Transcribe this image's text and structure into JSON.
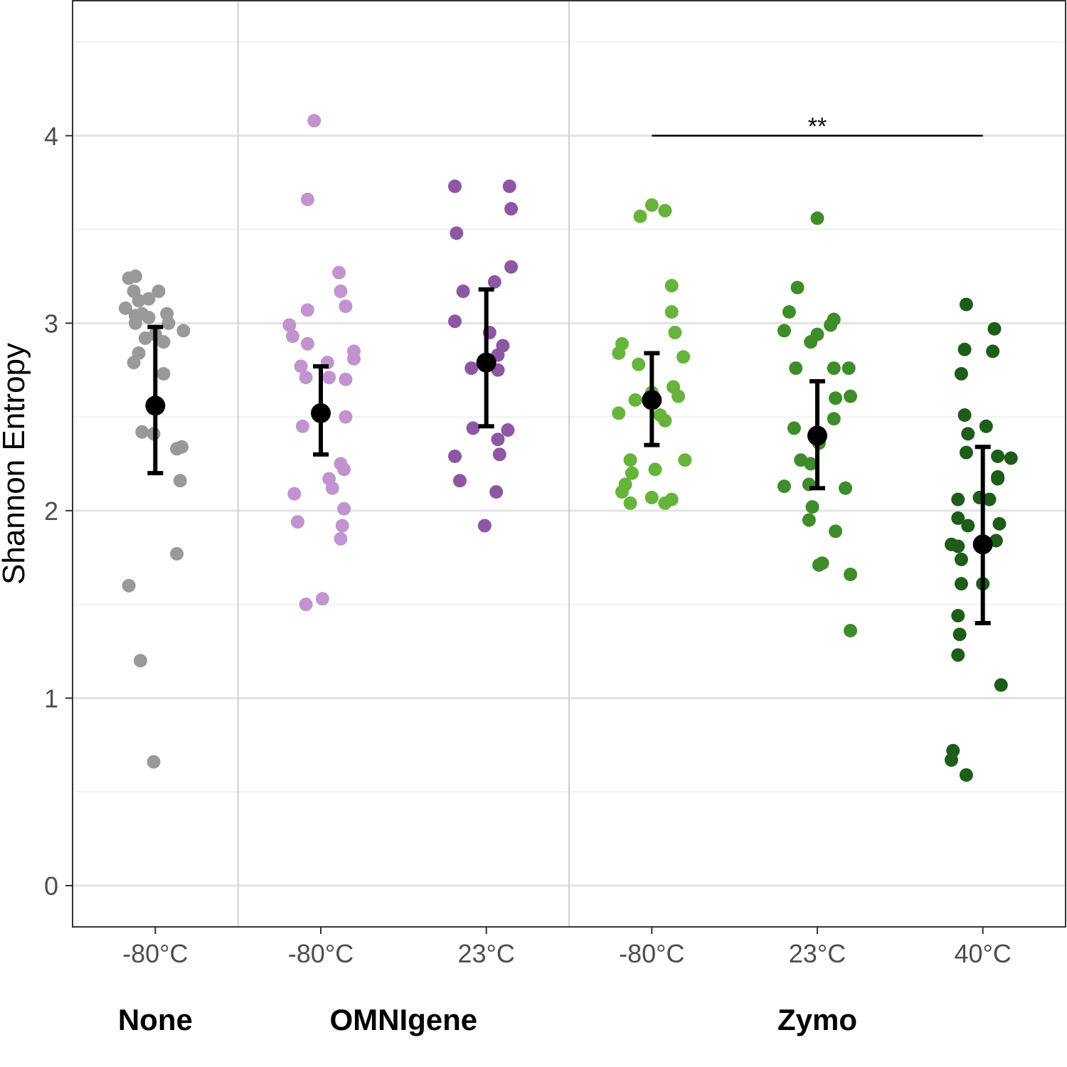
{
  "chart_data": {
    "type": "scatter",
    "ylabel": "Shannon Entropy",
    "ylim": [
      -0.22,
      4.72
    ],
    "y_ticks": [
      0,
      1,
      2,
      3,
      4
    ],
    "grid": true,
    "categories": [
      {
        "tick": "-80°C",
        "group": "None",
        "color": "#999999"
      },
      {
        "tick": "-80°C",
        "group": "OMNIgene",
        "color": "#c194cf"
      },
      {
        "tick": "23°C",
        "group": "OMNIgene",
        "color": "#8d57a3"
      },
      {
        "tick": "-80°C",
        "group": "Zymo",
        "color": "#67b33b"
      },
      {
        "tick": "23°C",
        "group": "Zymo",
        "color": "#3f8c2a"
      },
      {
        "tick": "40°C",
        "group": "Zymo",
        "color": "#1e5c19"
      }
    ],
    "groups": [
      {
        "label": "None",
        "start": 0,
        "end": 0
      },
      {
        "label": "OMNIgene",
        "start": 1,
        "end": 2
      },
      {
        "label": "Zymo",
        "start": 3,
        "end": 5
      }
    ],
    "series": [
      {
        "points": [
          [
            -0.16,
            3.24
          ],
          [
            -0.12,
            3.25
          ],
          [
            -0.13,
            3.17
          ],
          [
            -0.1,
            3.12
          ],
          [
            -0.04,
            3.13
          ],
          [
            0.02,
            3.17
          ],
          [
            -0.18,
            3.08
          ],
          [
            -0.12,
            3.04
          ],
          [
            -0.08,
            3.05
          ],
          [
            -0.04,
            3.03
          ],
          [
            0.07,
            3.05
          ],
          [
            0.08,
            3.0
          ],
          [
            -0.12,
            3.0
          ],
          [
            -0.06,
            2.92
          ],
          [
            0.0,
            2.94
          ],
          [
            0.05,
            2.9
          ],
          [
            0.17,
            2.96
          ],
          [
            -0.1,
            2.84
          ],
          [
            -0.13,
            2.79
          ],
          [
            0.05,
            2.73
          ],
          [
            -0.08,
            2.42
          ],
          [
            -0.01,
            2.41
          ],
          [
            0.13,
            2.33
          ],
          [
            0.16,
            2.34
          ],
          [
            0.15,
            2.16
          ],
          [
            0.13,
            1.77
          ],
          [
            -0.16,
            1.6
          ],
          [
            -0.09,
            1.2
          ],
          [
            -0.01,
            0.66
          ]
        ],
        "mean": 2.56,
        "lo": 2.2,
        "hi": 2.98
      },
      {
        "points": [
          [
            -0.04,
            4.08
          ],
          [
            -0.08,
            3.66
          ],
          [
            0.11,
            3.27
          ],
          [
            0.12,
            3.17
          ],
          [
            0.15,
            3.09
          ],
          [
            -0.08,
            3.07
          ],
          [
            -0.19,
            2.99
          ],
          [
            -0.17,
            2.93
          ],
          [
            -0.08,
            2.89
          ],
          [
            0.2,
            2.85
          ],
          [
            0.2,
            2.81
          ],
          [
            0.04,
            2.79
          ],
          [
            -0.12,
            2.77
          ],
          [
            0.05,
            2.71
          ],
          [
            -0.09,
            2.71
          ],
          [
            0.15,
            2.7
          ],
          [
            0.15,
            2.5
          ],
          [
            -0.11,
            2.45
          ],
          [
            0.12,
            2.25
          ],
          [
            0.14,
            2.22
          ],
          [
            0.05,
            2.17
          ],
          [
            0.07,
            2.12
          ],
          [
            -0.16,
            2.09
          ],
          [
            0.14,
            2.01
          ],
          [
            -0.14,
            1.94
          ],
          [
            0.13,
            1.92
          ],
          [
            0.12,
            1.85
          ],
          [
            0.01,
            1.53
          ],
          [
            -0.09,
            1.5
          ]
        ],
        "mean": 2.52,
        "lo": 2.3,
        "hi": 2.77
      },
      {
        "points": [
          [
            -0.19,
            3.73
          ],
          [
            0.14,
            3.73
          ],
          [
            0.15,
            3.61
          ],
          [
            -0.18,
            3.48
          ],
          [
            0.15,
            3.3
          ],
          [
            0.05,
            3.22
          ],
          [
            -0.14,
            3.17
          ],
          [
            -0.19,
            3.01
          ],
          [
            0.02,
            2.95
          ],
          [
            0.1,
            2.88
          ],
          [
            0.07,
            2.83
          ],
          [
            -0.09,
            2.76
          ],
          [
            0.07,
            2.75
          ],
          [
            -0.08,
            2.44
          ],
          [
            0.13,
            2.43
          ],
          [
            0.07,
            2.38
          ],
          [
            -0.19,
            2.29
          ],
          [
            0.08,
            2.3
          ],
          [
            -0.16,
            2.16
          ],
          [
            0.06,
            2.1
          ],
          [
            -0.01,
            1.92
          ]
        ],
        "mean": 2.79,
        "lo": 2.45,
        "hi": 3.18
      },
      {
        "points": [
          [
            -0.07,
            3.57
          ],
          [
            0.0,
            3.63
          ],
          [
            0.08,
            3.6
          ],
          [
            0.12,
            3.2
          ],
          [
            0.12,
            3.06
          ],
          [
            0.14,
            2.95
          ],
          [
            -0.18,
            2.89
          ],
          [
            -0.2,
            2.84
          ],
          [
            0.19,
            2.82
          ],
          [
            -0.08,
            2.78
          ],
          [
            0.13,
            2.66
          ],
          [
            0.0,
            2.63
          ],
          [
            0.16,
            2.61
          ],
          [
            -0.1,
            2.59
          ],
          [
            -0.2,
            2.52
          ],
          [
            0.05,
            2.51
          ],
          [
            0.08,
            2.48
          ],
          [
            0.2,
            2.27
          ],
          [
            -0.13,
            2.27
          ],
          [
            -0.12,
            2.2
          ],
          [
            0.02,
            2.22
          ],
          [
            -0.16,
            2.14
          ],
          [
            -0.18,
            2.1
          ],
          [
            0.0,
            2.07
          ],
          [
            -0.13,
            2.04
          ],
          [
            0.12,
            2.06
          ],
          [
            0.08,
            2.04
          ]
        ],
        "mean": 2.59,
        "lo": 2.35,
        "hi": 2.84
      },
      {
        "points": [
          [
            0.0,
            3.56
          ],
          [
            -0.12,
            3.19
          ],
          [
            -0.17,
            3.06
          ],
          [
            0.1,
            3.02
          ],
          [
            0.08,
            2.99
          ],
          [
            0.0,
            2.94
          ],
          [
            -0.2,
            2.96
          ],
          [
            -0.04,
            2.9
          ],
          [
            0.19,
            2.76
          ],
          [
            -0.13,
            2.76
          ],
          [
            0.1,
            2.76
          ],
          [
            0.2,
            2.61
          ],
          [
            0.11,
            2.6
          ],
          [
            0.1,
            2.49
          ],
          [
            -0.14,
            2.44
          ],
          [
            0.01,
            2.36
          ],
          [
            -0.1,
            2.27
          ],
          [
            -0.04,
            2.25
          ],
          [
            -0.05,
            2.14
          ],
          [
            -0.2,
            2.13
          ],
          [
            0.17,
            2.12
          ],
          [
            -0.03,
            2.02
          ],
          [
            -0.05,
            1.95
          ],
          [
            0.11,
            1.89
          ],
          [
            0.03,
            1.72
          ],
          [
            0.01,
            1.71
          ],
          [
            0.2,
            1.66
          ],
          [
            0.2,
            1.36
          ]
        ],
        "mean": 2.4,
        "lo": 2.12,
        "hi": 2.69
      },
      {
        "points": [
          [
            -0.1,
            3.1
          ],
          [
            0.07,
            2.97
          ],
          [
            -0.11,
            2.86
          ],
          [
            0.06,
            2.85
          ],
          [
            -0.13,
            2.73
          ],
          [
            -0.11,
            2.51
          ],
          [
            -0.09,
            2.41
          ],
          [
            0.02,
            2.45
          ],
          [
            -0.1,
            2.31
          ],
          [
            0.09,
            2.29
          ],
          [
            0.17,
            2.28
          ],
          [
            0.09,
            2.17
          ],
          [
            -0.02,
            2.07
          ],
          [
            -0.15,
            2.06
          ],
          [
            0.04,
            2.06
          ],
          [
            0.09,
            2.18
          ],
          [
            -0.15,
            1.96
          ],
          [
            0.1,
            1.93
          ],
          [
            -0.09,
            1.92
          ],
          [
            0.08,
            1.84
          ],
          [
            -0.19,
            1.82
          ],
          [
            -0.15,
            1.81
          ],
          [
            -0.13,
            1.74
          ],
          [
            -0.13,
            1.61
          ],
          [
            0.0,
            1.61
          ],
          [
            -0.15,
            1.44
          ],
          [
            -0.14,
            1.34
          ],
          [
            -0.15,
            1.23
          ],
          [
            0.11,
            1.07
          ],
          [
            -0.18,
            0.72
          ],
          [
            -0.19,
            0.67
          ],
          [
            -0.1,
            0.59
          ]
        ],
        "mean": 1.82,
        "lo": 1.4,
        "hi": 2.34
      }
    ],
    "significance": [
      {
        "from": 3,
        "to": 5,
        "y": 4.0,
        "label": "**"
      }
    ]
  }
}
